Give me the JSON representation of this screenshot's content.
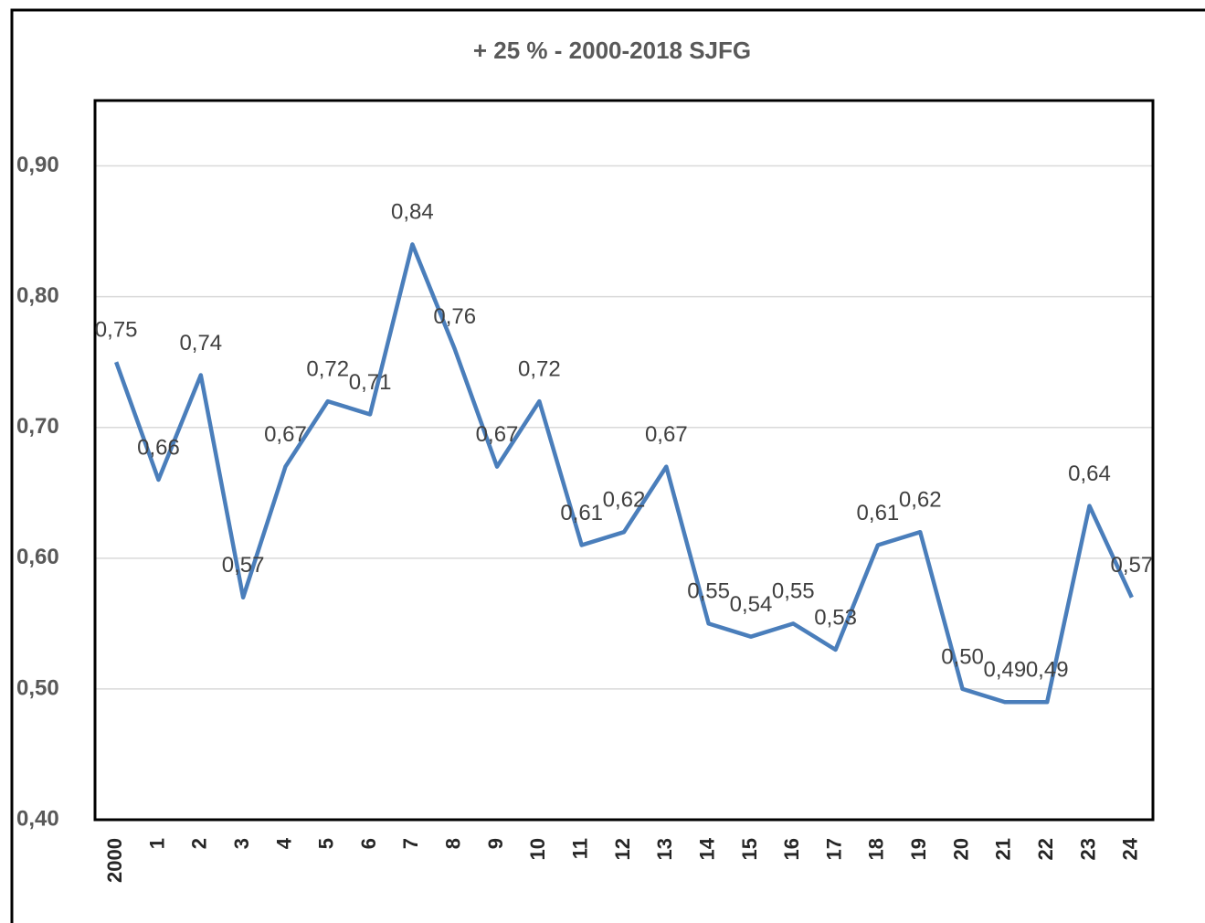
{
  "chart_data": {
    "type": "line",
    "title": "+ 25 % - 2000-2018 SJFG",
    "categories": [
      "2000",
      "1",
      "2",
      "3",
      "4",
      "5",
      "6",
      "7",
      "8",
      "9",
      "10",
      "11",
      "12",
      "13",
      "14",
      "15",
      "16",
      "17",
      "18",
      "19",
      "20",
      "21",
      "22",
      "23",
      "24"
    ],
    "series": [
      {
        "color": "#4a7ebb",
        "values": [
          0.75,
          0.66,
          0.74,
          0.57,
          0.67,
          0.72,
          0.71,
          0.84,
          0.76,
          0.67,
          0.72,
          0.61,
          0.62,
          0.67,
          0.55,
          0.54,
          0.55,
          0.53,
          0.61,
          0.62,
          0.5,
          0.49,
          0.49,
          0.64,
          0.57
        ],
        "value_labels": [
          "0,75",
          "0,66",
          "0,74",
          "0,57",
          "0,67",
          "0,72",
          "0,71",
          "0,84",
          "0,76",
          "0,67",
          "0,72",
          "0,61",
          "0,62",
          "0,67",
          "0,55",
          "0,54",
          "0,55",
          "0,53",
          "0,61",
          "0,62",
          "0,50",
          "0,49",
          "0,49",
          "0,64",
          "0,57"
        ]
      }
    ],
    "ylim": [
      0.4,
      0.95
    ],
    "yticks": [
      {
        "value": 0.4,
        "label": "0,40"
      },
      {
        "value": 0.5,
        "label": "0,50"
      },
      {
        "value": 0.6,
        "label": "0,60"
      },
      {
        "value": 0.7,
        "label": "0,70"
      },
      {
        "value": 0.8,
        "label": "0,80"
      },
      {
        "value": 0.9,
        "label": "0,90"
      }
    ],
    "grid": true
  }
}
